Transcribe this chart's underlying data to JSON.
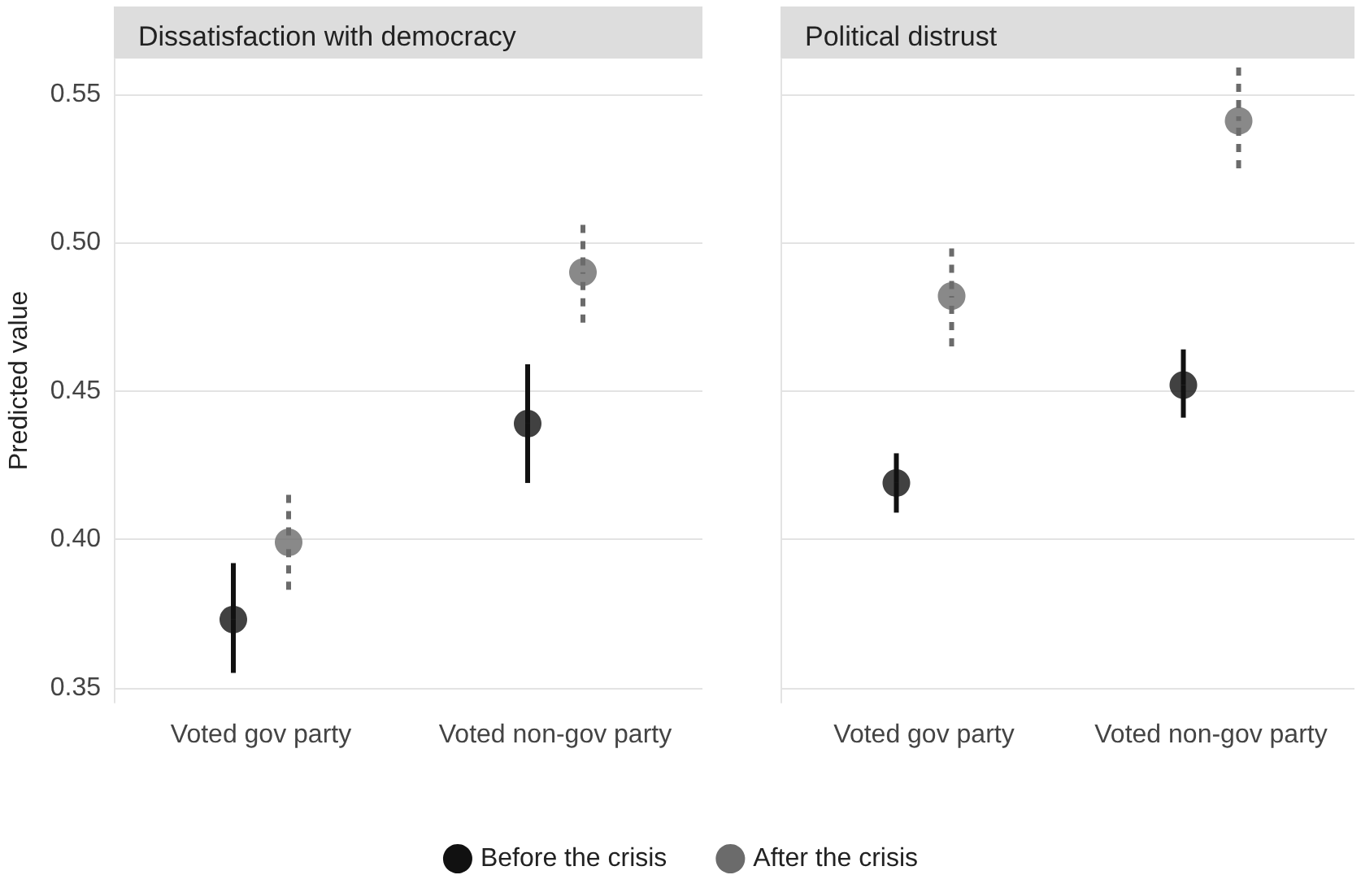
{
  "chart_data": [
    {
      "type": "scatter",
      "title": "Dissatisfaction with democracy",
      "ylabel": "Predicted value",
      "categories": [
        "Voted gov party",
        "Voted non-gov party"
      ],
      "ylim": [
        0.345,
        0.562
      ],
      "yticks": [
        {
          "value": 0.35,
          "label": "0.35"
        },
        {
          "value": 0.4,
          "label": "0.40"
        },
        {
          "value": 0.45,
          "label": "0.45"
        },
        {
          "value": 0.5,
          "label": "0.50"
        },
        {
          "value": 0.55,
          "label": "0.55"
        }
      ],
      "grid": "y",
      "legend": "bottom",
      "marker": "circle",
      "series": [
        {
          "name": "Before the crisis",
          "color": "#111111",
          "line_style": "solid",
          "values": [
            0.373,
            0.439
          ],
          "errors": [
            [
              0.355,
              0.392
            ],
            [
              0.419,
              0.459
            ]
          ]
        },
        {
          "name": "After the crisis",
          "color": "#6b6b6b",
          "line_style": "dashed",
          "values": [
            0.399,
            0.49
          ],
          "errors": [
            [
              0.383,
              0.415
            ],
            [
              0.473,
              0.506
            ]
          ]
        }
      ]
    },
    {
      "type": "scatter",
      "title": "Political distrust",
      "categories": [
        "Voted gov party",
        "Voted non-gov party"
      ],
      "ylim": [
        0.345,
        0.562
      ],
      "yticks": [
        0.35,
        0.4,
        0.45,
        0.5,
        0.55
      ],
      "grid": "y",
      "tick_labels": "x",
      "marker": "circle",
      "series": [
        {
          "color": "#111111",
          "line_style": "solid",
          "values": [
            0.419,
            0.452
          ],
          "errors": [
            [
              0.409,
              0.429
            ],
            [
              0.441,
              0.464
            ]
          ]
        },
        {
          "color": "#6b6b6b",
          "line_style": "dashed",
          "values": [
            0.482,
            0.541
          ],
          "errors": [
            [
              0.465,
              0.498
            ],
            [
              0.525,
              0.559
            ]
          ]
        }
      ]
    }
  ]
}
